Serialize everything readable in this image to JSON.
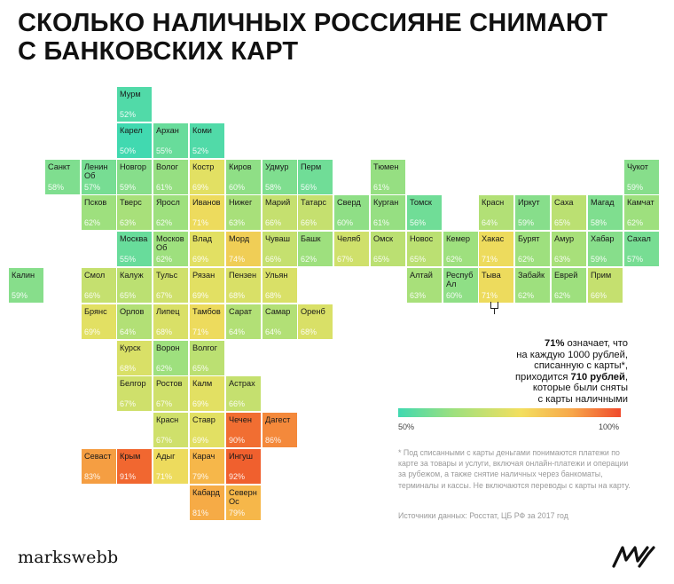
{
  "title": [
    "Сколько наличных россияне снимают",
    "с банковских карт"
  ],
  "regions": [
    {
      "name": "Мурм",
      "pct": 52,
      "col": 3,
      "row": 0
    },
    {
      "name": "Карел",
      "pct": 50,
      "col": 3,
      "row": 1
    },
    {
      "name": "Архан",
      "pct": 55,
      "col": 4,
      "row": 1
    },
    {
      "name": "Коми",
      "pct": 52,
      "col": 5,
      "row": 1
    },
    {
      "name": "Санкт",
      "pct": 58,
      "col": 1,
      "row": 2
    },
    {
      "name": "Ленин\nОб",
      "pct": 57,
      "col": 2,
      "row": 2
    },
    {
      "name": "Новгор",
      "pct": 59,
      "col": 3,
      "row": 2
    },
    {
      "name": "Волог",
      "pct": 61,
      "col": 4,
      "row": 2
    },
    {
      "name": "Костр",
      "pct": 69,
      "col": 5,
      "row": 2
    },
    {
      "name": "Киров",
      "pct": 60,
      "col": 6,
      "row": 2
    },
    {
      "name": "Удмур",
      "pct": 58,
      "col": 7,
      "row": 2
    },
    {
      "name": "Перм",
      "pct": 56,
      "col": 8,
      "row": 2
    },
    {
      "name": "Тюмен",
      "pct": 61,
      "col": 10,
      "row": 2
    },
    {
      "name": "Чукот",
      "pct": 59,
      "col": 17,
      "row": 2
    },
    {
      "name": "Псков",
      "pct": 62,
      "col": 2,
      "row": 3
    },
    {
      "name": "Тверс",
      "pct": 63,
      "col": 3,
      "row": 3
    },
    {
      "name": "Яросл",
      "pct": 62,
      "col": 4,
      "row": 3
    },
    {
      "name": "Иванов",
      "pct": 71,
      "col": 5,
      "row": 3
    },
    {
      "name": "Нижег",
      "pct": 63,
      "col": 6,
      "row": 3
    },
    {
      "name": "Марий",
      "pct": 66,
      "col": 7,
      "row": 3
    },
    {
      "name": "Татарс",
      "pct": 66,
      "col": 8,
      "row": 3
    },
    {
      "name": "Сверд",
      "pct": 60,
      "col": 9,
      "row": 3
    },
    {
      "name": "Курган",
      "pct": 61,
      "col": 10,
      "row": 3
    },
    {
      "name": "Томск",
      "pct": 56,
      "col": 11,
      "row": 3
    },
    {
      "name": "Красн",
      "pct": 64,
      "col": 13,
      "row": 3
    },
    {
      "name": "Иркут",
      "pct": 59,
      "col": 14,
      "row": 3
    },
    {
      "name": "Саха",
      "pct": 65,
      "col": 15,
      "row": 3
    },
    {
      "name": "Магад",
      "pct": 58,
      "col": 16,
      "row": 3
    },
    {
      "name": "Камчат",
      "pct": 62,
      "col": 17,
      "row": 3
    },
    {
      "name": "Москва",
      "pct": 55,
      "col": 3,
      "row": 4
    },
    {
      "name": "Москов\nОб",
      "pct": 62,
      "col": 4,
      "row": 4
    },
    {
      "name": "Влад",
      "pct": 69,
      "col": 5,
      "row": 4
    },
    {
      "name": "Морд",
      "pct": 74,
      "col": 6,
      "row": 4
    },
    {
      "name": "Чуваш",
      "pct": 66,
      "col": 7,
      "row": 4
    },
    {
      "name": "Башк",
      "pct": 62,
      "col": 8,
      "row": 4
    },
    {
      "name": "Челяб",
      "pct": 67,
      "col": 9,
      "row": 4
    },
    {
      "name": "Омск",
      "pct": 65,
      "col": 10,
      "row": 4
    },
    {
      "name": "Новос",
      "pct": 65,
      "col": 11,
      "row": 4
    },
    {
      "name": "Кемер",
      "pct": 62,
      "col": 12,
      "row": 4
    },
    {
      "name": "Хакас",
      "pct": 71,
      "col": 13,
      "row": 4
    },
    {
      "name": "Бурят",
      "pct": 62,
      "col": 14,
      "row": 4
    },
    {
      "name": "Амур",
      "pct": 63,
      "col": 15,
      "row": 4
    },
    {
      "name": "Хабар",
      "pct": 59,
      "col": 16,
      "row": 4
    },
    {
      "name": "Сахал",
      "pct": 57,
      "col": 17,
      "row": 4
    },
    {
      "name": "Калин",
      "pct": 59,
      "col": 0,
      "row": 5
    },
    {
      "name": "Смол",
      "pct": 66,
      "col": 2,
      "row": 5
    },
    {
      "name": "Калуж",
      "pct": 65,
      "col": 3,
      "row": 5
    },
    {
      "name": "Тульс",
      "pct": 67,
      "col": 4,
      "row": 5
    },
    {
      "name": "Рязан",
      "pct": 69,
      "col": 5,
      "row": 5
    },
    {
      "name": "Пензен",
      "pct": 68,
      "col": 6,
      "row": 5
    },
    {
      "name": "Ульян",
      "pct": 68,
      "col": 7,
      "row": 5
    },
    {
      "name": "Алтай",
      "pct": 63,
      "col": 11,
      "row": 5
    },
    {
      "name": "Респуб\nАл",
      "pct": 60,
      "col": 12,
      "row": 5
    },
    {
      "name": "Тыва",
      "pct": 71,
      "col": 13,
      "row": 5
    },
    {
      "name": "Забайк",
      "pct": 62,
      "col": 14,
      "row": 5
    },
    {
      "name": "Еврей",
      "pct": 62,
      "col": 15,
      "row": 5
    },
    {
      "name": "Прим",
      "pct": 66,
      "col": 16,
      "row": 5
    },
    {
      "name": "Брянс",
      "pct": 69,
      "col": 2,
      "row": 6
    },
    {
      "name": "Орлов",
      "pct": 64,
      "col": 3,
      "row": 6
    },
    {
      "name": "Липец",
      "pct": 68,
      "col": 4,
      "row": 6
    },
    {
      "name": "Тамбов",
      "pct": 71,
      "col": 5,
      "row": 6
    },
    {
      "name": "Сарат",
      "pct": 64,
      "col": 6,
      "row": 6
    },
    {
      "name": "Самар",
      "pct": 64,
      "col": 7,
      "row": 6
    },
    {
      "name": "Оренб",
      "pct": 68,
      "col": 8,
      "row": 6
    },
    {
      "name": "Курск",
      "pct": 68,
      "col": 3,
      "row": 7
    },
    {
      "name": "Ворон",
      "pct": 62,
      "col": 4,
      "row": 7
    },
    {
      "name": "Волгог",
      "pct": 65,
      "col": 5,
      "row": 7
    },
    {
      "name": "Белгор",
      "pct": 67,
      "col": 3,
      "row": 8
    },
    {
      "name": "Ростов",
      "pct": 67,
      "col": 4,
      "row": 8
    },
    {
      "name": "Калм",
      "pct": 69,
      "col": 5,
      "row": 8
    },
    {
      "name": "Астрах",
      "pct": 66,
      "col": 6,
      "row": 8
    },
    {
      "name": "Красн",
      "pct": 67,
      "col": 4,
      "row": 9
    },
    {
      "name": "Ставр",
      "pct": 69,
      "col": 5,
      "row": 9
    },
    {
      "name": "Чечен",
      "pct": 90,
      "col": 6,
      "row": 9
    },
    {
      "name": "Дагест",
      "pct": 86,
      "col": 7,
      "row": 9
    },
    {
      "name": "Севаст",
      "pct": 83,
      "col": 2,
      "row": 10
    },
    {
      "name": "Крым",
      "pct": 91,
      "col": 3,
      "row": 10
    },
    {
      "name": "Адыг",
      "pct": 71,
      "col": 4,
      "row": 10
    },
    {
      "name": "Карач",
      "pct": 79,
      "col": 5,
      "row": 10
    },
    {
      "name": "Ингуш",
      "pct": 92,
      "col": 6,
      "row": 10
    },
    {
      "name": "Кабард",
      "pct": 81,
      "col": 5,
      "row": 11
    },
    {
      "name": "Северн\nОс",
      "pct": 79,
      "col": 6,
      "row": 11
    }
  ],
  "annotation": {
    "pct": "71%",
    "line1": " означает, что",
    "line2": "на каждую 1000 рублей,",
    "line3": "списанную с карты*,",
    "line4a": "приходится ",
    "line4b": "710 рублей",
    "line4c": ",",
    "line5": "которые были сняты",
    "line6": "с карты наличными"
  },
  "legend": {
    "min_label": "50%",
    "max_label": "100%",
    "colors": [
      "#41d9b0",
      "#9ee07e",
      "#f3df5f",
      "#f7a74a",
      "#f04b2d"
    ]
  },
  "footnote": "* Под списанными с карты деньгами понимаются платежи по карте за товары и услуги, включая онлайн-платежи и операции за рубежом, а также снятие наличных через банкоматы, терминалы и кассы. Не включаются переводы с карты на карту.",
  "source": "Источники данных: Росстат, ЦБ РФ за 2017 год",
  "brand": "markswebb",
  "logo_label": "MW"
}
